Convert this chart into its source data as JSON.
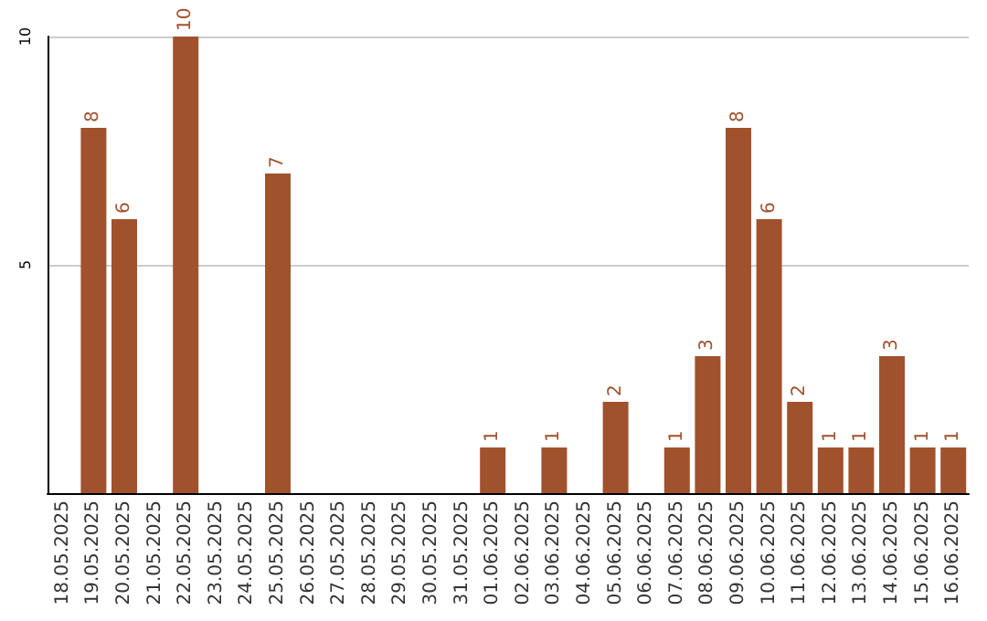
{
  "chart_data": {
    "type": "bar",
    "categories": [
      "18.05.2025",
      "19.05.2025",
      "20.05.2025",
      "21.05.2025",
      "22.05.2025",
      "23.05.2025",
      "24.05.2025",
      "25.05.2025",
      "26.05.2025",
      "27.05.2025",
      "28.05.2025",
      "29.05.2025",
      "30.05.2025",
      "31.05.2025",
      "01.06.2025",
      "02.06.2025",
      "03.06.2025",
      "04.06.2025",
      "05.06.2025",
      "06.06.2025",
      "07.06.2025",
      "08.06.2025",
      "09.06.2025",
      "10.06.2025",
      "11.06.2025",
      "12.06.2025",
      "13.06.2025",
      "14.06.2025",
      "15.06.2025",
      "16.06.2025"
    ],
    "values": [
      0,
      8,
      6,
      0,
      10,
      0,
      0,
      7,
      0,
      0,
      0,
      0,
      0,
      0,
      1,
      0,
      1,
      0,
      2,
      0,
      1,
      3,
      8,
      6,
      2,
      1,
      1,
      3,
      1,
      1
    ],
    "value_labels": [
      null,
      "8",
      "6",
      null,
      "10",
      null,
      null,
      "7",
      null,
      null,
      null,
      null,
      null,
      null,
      "1",
      null,
      "1",
      null,
      "2",
      null,
      "1",
      "3",
      "8",
      "6",
      "2",
      "1",
      "1",
      "3",
      "1",
      "1"
    ],
    "color": "#a0522d",
    "ylim": [
      0,
      10
    ],
    "yticks": [
      5,
      10
    ],
    "grid": "y"
  }
}
